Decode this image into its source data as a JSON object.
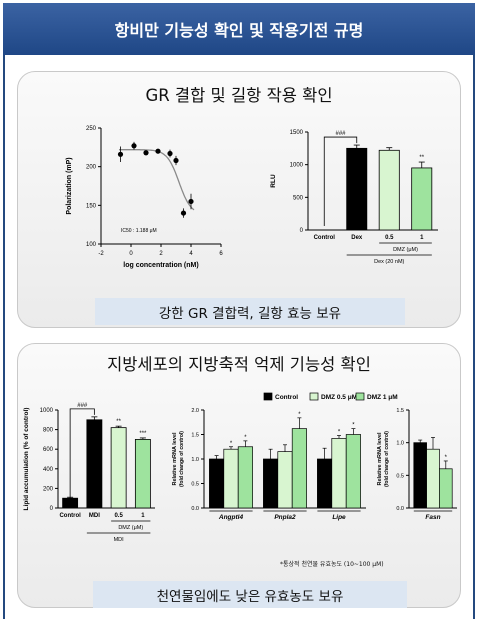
{
  "header": {
    "title": "항비만 기능성 확인 및 작용기전 규명"
  },
  "panel1": {
    "title": "GR 결합 및 길항 작용 확인",
    "caption": "강한 GR 결합력, 길항 효능 보유"
  },
  "panel2": {
    "title": "지방세포의 지방축적 억제 기능성 확인",
    "caption": "천연물임에도 낮은 유효농도 보유",
    "note": "*통상적 천연물 유효농도 (10~100 μM)"
  },
  "chart_data": [
    {
      "type": "scatter",
      "xlabel": "log concentration (nM)",
      "ylabel": "Polarization (mP)",
      "xlim": [
        -2,
        6
      ],
      "ylim": [
        100,
        250
      ],
      "xticks": [
        "-2",
        "0",
        "2",
        "4",
        "6"
      ],
      "yticks": [
        "100",
        "150",
        "200",
        "250"
      ],
      "annotation": "IC50 : 1.188 μM",
      "x": [
        -0.7,
        0.2,
        1.0,
        1.8,
        2.6,
        3.0,
        3.5,
        4.0
      ],
      "y": [
        216,
        227,
        218,
        220,
        217,
        208,
        140,
        155
      ],
      "error": [
        10,
        5,
        3,
        3,
        5,
        6,
        6,
        10
      ]
    },
    {
      "type": "bar",
      "ylabel": "RLU",
      "ylim": [
        0,
        1500
      ],
      "yticks": [
        "0",
        "500",
        "1000",
        "1500"
      ],
      "categories": [
        "Control",
        "Dex",
        "0.5",
        "1"
      ],
      "values": [
        0,
        1250,
        1220,
        950
      ],
      "error": [
        0,
        50,
        40,
        90
      ],
      "significance": [
        "",
        "###",
        "",
        "**"
      ],
      "group_label_1": "DMZ (μM)",
      "group_label_2": "Dex (20 nM)",
      "colors": [
        "#000000",
        "#000000",
        "#d8f5d0",
        "#9ee39e"
      ]
    },
    {
      "type": "bar",
      "ylabel": "Lipid accumulation (% of control)",
      "ylim": [
        0,
        1000
      ],
      "yticks": [
        "0",
        "200",
        "400",
        "600",
        "800",
        "1000"
      ],
      "categories": [
        "Control",
        "MDI",
        "0.5",
        "1"
      ],
      "values": [
        100,
        900,
        820,
        700
      ],
      "error": [
        10,
        30,
        15,
        15
      ],
      "significance": [
        "",
        "###",
        "**",
        "***"
      ],
      "group_label_1": "DMZ (μM)",
      "group_label_2": "MDI",
      "colors": [
        "#000000",
        "#000000",
        "#d8f5d0",
        "#9ee39e"
      ]
    },
    {
      "type": "bar",
      "ylabel": "Relative mRNA level (fold change of control)",
      "ylim": [
        0,
        2.0
      ],
      "yticks": [
        "0.0",
        "0.5",
        "1.0",
        "1.5",
        "2.0"
      ],
      "categories": [
        "Angptl4",
        "Pnpla2",
        "Lipe"
      ],
      "series": [
        {
          "name": "Control",
          "values": [
            1.0,
            1.0,
            1.0
          ],
          "error": [
            0.07,
            0.2,
            0.22
          ],
          "sig": [
            "",
            "",
            ""
          ]
        },
        {
          "name": "DMZ 0.5 μM",
          "values": [
            1.2,
            1.15,
            1.42
          ],
          "error": [
            0.05,
            0.14,
            0.06
          ],
          "sig": [
            "*",
            "",
            "*"
          ]
        },
        {
          "name": "DMZ 1 μM",
          "values": [
            1.25,
            1.62,
            1.5
          ],
          "error": [
            0.12,
            0.22,
            0.12
          ],
          "sig": [
            "*",
            "*",
            "*"
          ]
        }
      ],
      "colors": [
        "#000000",
        "#d8f5d0",
        "#9ee39e"
      ]
    },
    {
      "type": "bar",
      "ylabel": "Relative mRNA level (fold change of control)",
      "ylim": [
        0,
        1.5
      ],
      "yticks": [
        "0.0",
        "0.5",
        "1.0",
        "1.5"
      ],
      "categories": [
        "Fasn"
      ],
      "series": [
        {
          "name": "Control",
          "values": [
            1.0
          ],
          "error": [
            0.04
          ],
          "sig": [
            ""
          ]
        },
        {
          "name": "DMZ 0.5 μM",
          "values": [
            0.9
          ],
          "error": [
            0.18
          ],
          "sig": [
            ""
          ]
        },
        {
          "name": "DMZ 1 μM",
          "values": [
            0.6
          ],
          "error": [
            0.12
          ],
          "sig": [
            "*"
          ]
        }
      ],
      "colors": [
        "#000000",
        "#d8f5d0",
        "#9ee39e"
      ]
    }
  ]
}
